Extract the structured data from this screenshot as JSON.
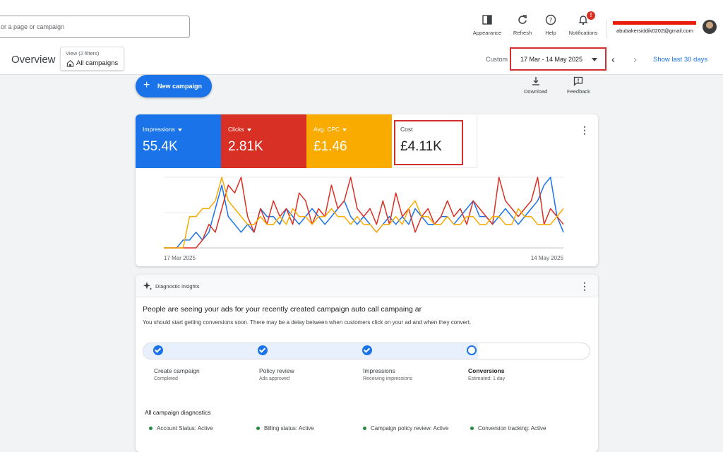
{
  "search": {
    "placeholder": "or a page or campaign"
  },
  "toolbar": {
    "appearance": "Appearance",
    "refresh": "Refresh",
    "help": "Help",
    "notifications": "Notifications",
    "notification_badge": "!"
  },
  "account": {
    "email": "abubakersiddik0202@gmail.com"
  },
  "page": {
    "title": "Overview",
    "view_filters": "View (2 filters)",
    "view_scope": "All campaigns",
    "date_mode": "Custom",
    "date_range": "17 Mar - 14 May 2025",
    "show_last": "Show last 30 days"
  },
  "actions": {
    "new_campaign": "New campaign",
    "download": "Download",
    "feedback": "Feedback"
  },
  "metrics": [
    {
      "label": "Impressions",
      "value": "55.4K",
      "color": "#1a73e8"
    },
    {
      "label": "Clicks",
      "value": "2.81K",
      "color": "#d93025"
    },
    {
      "label": "Avg. CPC",
      "value": "£1.46",
      "color": "#f9ab00"
    },
    {
      "label": "Cost",
      "value": "£4.11K",
      "color": "#ffffff"
    }
  ],
  "chart_data": {
    "type": "line",
    "x_start_label": "17 Mar 2025",
    "x_end_label": "14 May 2025",
    "y_axis_shown": false,
    "grid": true,
    "series": [
      {
        "name": "Impressions",
        "color": "#1a73e8",
        "values": [
          0,
          0,
          0,
          1,
          1,
          2,
          1,
          2,
          5,
          8,
          4,
          3,
          2,
          3,
          2,
          5,
          4,
          4,
          3,
          5,
          4,
          3,
          4,
          5,
          4,
          3,
          4,
          5,
          6,
          4,
          3,
          4,
          3,
          2,
          3,
          4,
          3,
          4,
          3,
          5,
          4,
          3,
          3,
          4,
          4,
          3,
          4,
          5,
          6,
          4,
          4,
          3,
          4,
          5,
          4,
          3,
          4,
          5,
          6,
          8,
          9,
          4,
          2
        ]
      },
      {
        "name": "Clicks",
        "color": "#d93025",
        "values": [
          0,
          0,
          0,
          0,
          0,
          0,
          1,
          3,
          2,
          5,
          8,
          7,
          9,
          4,
          2,
          5,
          3,
          6,
          4,
          5,
          3,
          7,
          6,
          3,
          5,
          4,
          8,
          5,
          6,
          9,
          5,
          4,
          5,
          3,
          6,
          3,
          7,
          4,
          5,
          2,
          4,
          5,
          3,
          4,
          6,
          4,
          5,
          3,
          6,
          5,
          4,
          3,
          9,
          6,
          5,
          4,
          5,
          6,
          9,
          3,
          5,
          4,
          3
        ]
      },
      {
        "name": "Avg. CPC",
        "color": "#f9ab00",
        "values": [
          0,
          0,
          0,
          0,
          4,
          4,
          5,
          5,
          6,
          9,
          6,
          5,
          4,
          3,
          3,
          4,
          3,
          3,
          4,
          3,
          5,
          4,
          4,
          3,
          4,
          4,
          5,
          4,
          4,
          3,
          4,
          3,
          3,
          2,
          3,
          3,
          4,
          3,
          5,
          6,
          4,
          4,
          3,
          3,
          4,
          3,
          3,
          4,
          4,
          3,
          3,
          4,
          4,
          3,
          3,
          5,
          4,
          4,
          3,
          3,
          3,
          4,
          5
        ]
      }
    ]
  },
  "diagnostics": {
    "title": "Diagnostic insights",
    "headline": "People are seeing your ads for your recently created campaign auto call campaing ar",
    "subline": "You should start getting conversions soon. There may be a delay between when customers click on your ad and when they convert.",
    "progress_complete_steps": 3,
    "steps": [
      {
        "name": "Create campaign",
        "sub": "Completed",
        "done": true
      },
      {
        "name": "Policy review",
        "sub": "Ads approved",
        "done": true
      },
      {
        "name": "Impressions",
        "sub": "Receiving impressions",
        "done": true
      },
      {
        "name": "Conversions",
        "sub": "Estimated: 1 day",
        "done": false
      }
    ],
    "all_title": "All campaign diagnostics",
    "statuses": [
      "Account Status: Active",
      "Billing status: Active",
      "Campaign policy review: Active",
      "Conversion tracking: Active"
    ]
  }
}
